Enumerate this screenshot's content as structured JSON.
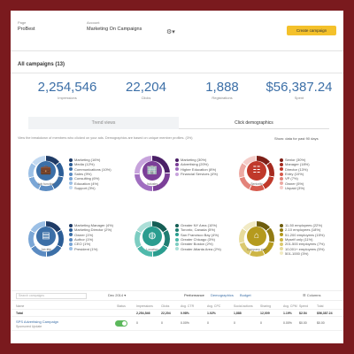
{
  "topbar": {
    "page_label": "Page",
    "page_value": "ProBest",
    "account_label": "Account",
    "account_value": "Marketing On Campaigns",
    "create_button": "Create campaign"
  },
  "all_campaigns": "All campaigns (13)",
  "stats": [
    {
      "value": "2,254,546",
      "label": "Impressions"
    },
    {
      "value": "22,204",
      "label": "Clicks"
    },
    {
      "value": "1,888",
      "label": "Registrations"
    },
    {
      "value": "$56,387.24",
      "label": "Spent"
    }
  ],
  "tabs": {
    "trend": "Trend views",
    "demographics": "Click demographics"
  },
  "note": "View the breakdown of members who clicked on your ads. Demographics are based on unique member profiles. (3%)",
  "show_data": "Show: data for past 90 days",
  "colors": {
    "blue": "#3c6fa7",
    "purple": "#7b3f98",
    "red": "#c0392b",
    "teal": "#2a9d8f",
    "olive": "#b59a1e",
    "accent": "#f4c12b"
  },
  "groups": [
    {
      "name": "Job function",
      "icon": "briefcase-icon",
      "glyph": "💼",
      "color": "#3c6fa7",
      "items": [
        {
          "label": "Marketing (16%)",
          "color": "#1f3b66"
        },
        {
          "label": "Media (12%)",
          "color": "#2b5d96"
        },
        {
          "label": "Communications (10%)",
          "color": "#3c6fa7"
        },
        {
          "label": "Sales (9%)",
          "color": "#5b8bc2"
        },
        {
          "label": "Consulting (6%)",
          "color": "#7aa6d6"
        },
        {
          "label": "Education (4%)",
          "color": "#9cc0e6"
        },
        {
          "label": "Support (3%)",
          "color": "#c2d9f1"
        }
      ]
    },
    {
      "name": "Industry",
      "icon": "building-icon",
      "glyph": "🏢",
      "color": "#7b3f98",
      "items": [
        {
          "label": "Marketing (30%)",
          "color": "#4a1f66"
        },
        {
          "label": "Advertising (20%)",
          "color": "#7b3f98"
        },
        {
          "label": "Higher Education (8%)",
          "color": "#a06ec0"
        },
        {
          "label": "Financial Services (4%)",
          "color": "#c7a3dc"
        }
      ]
    },
    {
      "name": "Seniority",
      "icon": "badge-icon",
      "glyph": "☷",
      "color": "#c0392b",
      "items": [
        {
          "label": "Senior (30%)",
          "color": "#7d1f17"
        },
        {
          "label": "Manager (18%)",
          "color": "#a52a1f"
        },
        {
          "label": "Director (13%)",
          "color": "#c0392b"
        },
        {
          "label": "Entry (10%)",
          "color": "#d65a4d"
        },
        {
          "label": "VP (7%)",
          "color": "#e3837a"
        },
        {
          "label": "Owner (5%)",
          "color": "#eda9a3"
        },
        {
          "label": "Unpaid (3%)",
          "color": "#f5cdc9"
        }
      ]
    },
    {
      "name": "Job title",
      "icon": "id-card-icon",
      "glyph": "▤",
      "color": "#3c6fa7",
      "items": [
        {
          "label": "Marketing Manager (4%)",
          "color": "#1f3b66"
        },
        {
          "label": "Marketing Director (2%)",
          "color": "#2b5d96"
        },
        {
          "label": "Owner (1%)",
          "color": "#3c6fa7"
        },
        {
          "label": "Author (1%)",
          "color": "#5b8bc2"
        },
        {
          "label": "CEO (1%)",
          "color": "#7aa6d6"
        },
        {
          "label": "President (1%)",
          "color": "#9cc0e6"
        }
      ]
    },
    {
      "name": "Location",
      "icon": "globe-icon",
      "glyph": "◍",
      "color": "#2a9d8f",
      "items": [
        {
          "label": "Greater NY Area (10%)",
          "color": "#155e55"
        },
        {
          "label": "Toronto, Canada (5%)",
          "color": "#1f7e72"
        },
        {
          "label": "San Francisco Bay (4%)",
          "color": "#2a9d8f"
        },
        {
          "label": "Greater Chicago (3%)",
          "color": "#4fb9ab"
        },
        {
          "label": "Greater Boston (2%)",
          "color": "#7dcdc2"
        },
        {
          "label": "Greater Atlanta Area (2%)",
          "color": "#acdfd8"
        }
      ]
    },
    {
      "name": "Company size",
      "icon": "company-icon",
      "glyph": "⌂",
      "color": "#b59a1e",
      "items": [
        {
          "label": "11-50 employees (22%)",
          "color": "#6e5d0e"
        },
        {
          "label": "2-10 employees (18%)",
          "color": "#917b14"
        },
        {
          "label": "51-200 employees (15%)",
          "color": "#b59a1e"
        },
        {
          "label": "Myself only (11%)",
          "color": "#cdb545"
        },
        {
          "label": "201-500 employees (7%)",
          "color": "#dbc970"
        },
        {
          "label": "10,001+ employees (5%)",
          "color": "#e7db9b"
        },
        {
          "label": "501-1000 (3%)",
          "color": "#f1eac4"
        }
      ]
    }
  ],
  "toolbar": {
    "search_placeholder": "Search campaigns",
    "date": "Dec 2014",
    "views": [
      "Performance",
      "Demographics",
      "Budget"
    ],
    "columns": "Columns"
  },
  "table": {
    "headers": [
      "Name",
      "Status",
      "Impressions",
      "Clicks",
      "Avg. CTR",
      "Avg. CPC",
      "Social actions",
      "Sharing",
      "Avg. CPM",
      "Spend",
      "Total"
    ],
    "total": [
      "Total",
      "",
      "2,254,546",
      "22,204",
      "0.98%",
      "1.02%",
      "1,888",
      "12,009",
      "1.19%",
      "$2.54",
      "$56,387.24"
    ],
    "campaigns": [
      {
        "name": "SPS Advertising Campaign",
        "sub": "Sponsored Update",
        "values": [
          "0",
          "0",
          "0.00%",
          "0",
          "0",
          "0",
          "0.00%",
          "$0.00",
          "$0.00"
        ]
      }
    ]
  }
}
